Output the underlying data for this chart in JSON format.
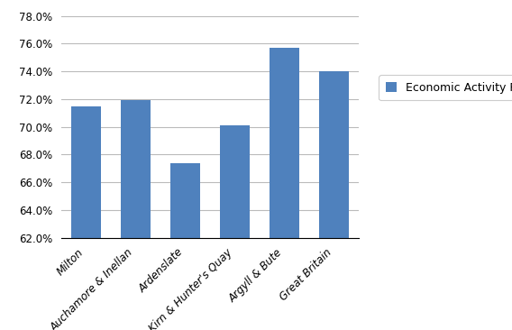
{
  "categories": [
    "Milton",
    "Auchamore & Inellan",
    "Ardenslate",
    "Kirn & Hunter's Quay",
    "Argyll & Bute",
    "Great Britain"
  ],
  "values": [
    0.715,
    0.719,
    0.674,
    0.701,
    0.757,
    0.74
  ],
  "bar_color": "#4F81BD",
  "legend_label": "Economic Activity Rate",
  "ylim_min": 0.62,
  "ylim_max": 0.782,
  "ytick_step": 0.02,
  "background_color": "#ffffff",
  "grid_color": "#bbbbbb",
  "bar_width": 0.6
}
